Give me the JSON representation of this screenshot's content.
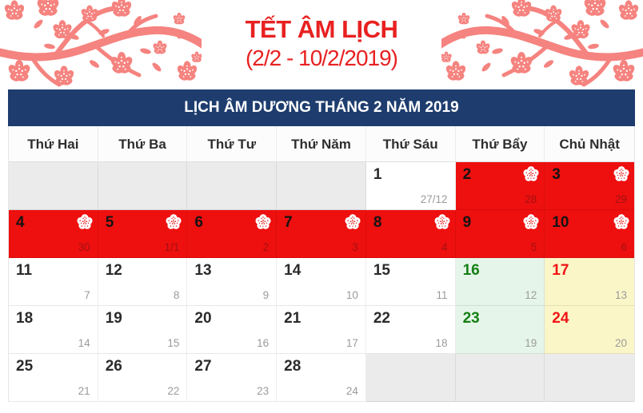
{
  "header": {
    "title": "TẾT ÂM LỊCH",
    "subtitle": "(2/2 - 10/2/2019)"
  },
  "banner": {
    "title": "LỊCH ÂM DƯƠNG THÁNG 2 NĂM 2019"
  },
  "calendar": {
    "weekdays": [
      "Thứ Hai",
      "Thứ Ba",
      "Thứ Tư",
      "Thứ Năm",
      "Thứ Sáu",
      "Thứ Bẩy",
      "Chủ Nhật"
    ],
    "weeks": [
      [
        {
          "kind": "empty"
        },
        {
          "kind": "empty"
        },
        {
          "kind": "empty"
        },
        {
          "kind": "empty"
        },
        {
          "kind": "normal",
          "solar": "1",
          "lunar": "27/12"
        },
        {
          "kind": "holiday",
          "solar": "2",
          "lunar": "28",
          "flower": true
        },
        {
          "kind": "holiday",
          "solar": "3",
          "lunar": "29",
          "flower": true
        }
      ],
      [
        {
          "kind": "holiday",
          "solar": "4",
          "lunar": "30",
          "flower": true
        },
        {
          "kind": "holiday",
          "solar": "5",
          "lunar": "1/1",
          "flower": true
        },
        {
          "kind": "holiday",
          "solar": "6",
          "lunar": "2",
          "flower": true
        },
        {
          "kind": "holiday",
          "solar": "7",
          "lunar": "3",
          "flower": true
        },
        {
          "kind": "holiday",
          "solar": "8",
          "lunar": "4",
          "flower": true
        },
        {
          "kind": "holiday",
          "solar": "9",
          "lunar": "5",
          "flower": true
        },
        {
          "kind": "holiday",
          "solar": "10",
          "lunar": "6",
          "flower": true
        }
      ],
      [
        {
          "kind": "normal",
          "solar": "11",
          "lunar": "7"
        },
        {
          "kind": "normal",
          "solar": "12",
          "lunar": "8"
        },
        {
          "kind": "normal",
          "solar": "13",
          "lunar": "9"
        },
        {
          "kind": "normal",
          "solar": "14",
          "lunar": "10"
        },
        {
          "kind": "normal",
          "solar": "15",
          "lunar": "11"
        },
        {
          "kind": "sat",
          "solar": "16",
          "lunar": "12"
        },
        {
          "kind": "sun",
          "solar": "17",
          "lunar": "13"
        }
      ],
      [
        {
          "kind": "normal",
          "solar": "18",
          "lunar": "14"
        },
        {
          "kind": "normal",
          "solar": "19",
          "lunar": "15"
        },
        {
          "kind": "normal",
          "solar": "20",
          "lunar": "16"
        },
        {
          "kind": "normal",
          "solar": "21",
          "lunar": "17"
        },
        {
          "kind": "normal",
          "solar": "22",
          "lunar": "18"
        },
        {
          "kind": "sat",
          "solar": "23",
          "lunar": "19"
        },
        {
          "kind": "sun",
          "solar": "24",
          "lunar": "20"
        }
      ],
      [
        {
          "kind": "normal",
          "solar": "25",
          "lunar": "21"
        },
        {
          "kind": "normal",
          "solar": "26",
          "lunar": "22"
        },
        {
          "kind": "normal",
          "solar": "27",
          "lunar": "23"
        },
        {
          "kind": "normal",
          "solar": "28",
          "lunar": "24"
        },
        {
          "kind": "empty"
        },
        {
          "kind": "empty"
        },
        {
          "kind": "empty"
        }
      ]
    ]
  },
  "icons": {
    "holiday_marker": "blossom-icon",
    "decoration": "blossom-branch"
  },
  "colors": {
    "accent_red": "#e82121",
    "holiday_bg": "#ee0f0f",
    "holiday_lunar_text": "#a31111",
    "saturday_bg": "#e6f5e9",
    "saturday_text": "#148014",
    "sunday_bg": "#fbf6c8",
    "sunday_text": "#f01414",
    "banner_bg": "#1e3d6e",
    "blossom_pink": "#f5837f",
    "empty_cell_bg": "#ebebeb",
    "solar_text": "#2b2b2b",
    "lunar_text": "#9b9b9b"
  }
}
